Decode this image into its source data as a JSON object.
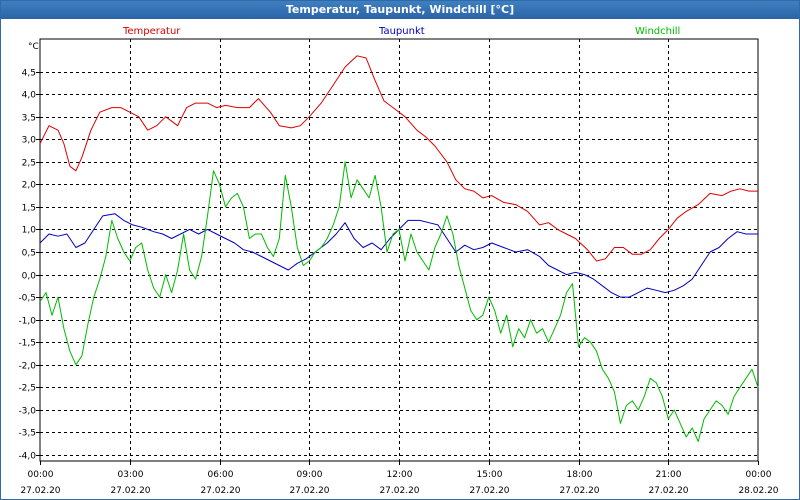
{
  "window": {
    "title": "Temperatur, Taupunkt, Windchill [°C]"
  },
  "chart_data": {
    "type": "line",
    "title": "Temperatur, Taupunkt, Windchill [°C]",
    "ylabel": "°C",
    "xlabel": "",
    "ylim": [
      -4.0,
      5.0
    ],
    "xlim": [
      0,
      24
    ],
    "grid": true,
    "legend": "top",
    "y_ticks": [
      -4.0,
      -3.5,
      -3.0,
      -2.5,
      -2.0,
      -1.5,
      -1.0,
      -0.5,
      0.0,
      0.5,
      1.0,
      1.5,
      2.0,
      2.5,
      3.0,
      3.5,
      4.0,
      4.5
    ],
    "y_tick_labels": [
      "-4,0",
      "-3,5",
      "-3,0",
      "-2,5",
      "-2,0",
      "-1,5",
      "-1,0",
      "-0,5",
      "0,0",
      "0,5",
      "1,0",
      "1,5",
      "2,0",
      "2,5",
      "3,0",
      "3,5",
      "4,0",
      "4,5"
    ],
    "x_ticks": [
      {
        "time": "00:00",
        "date": "27.02.20"
      },
      {
        "time": "03:00",
        "date": "27.02.20"
      },
      {
        "time": "06:00",
        "date": "27.02.20"
      },
      {
        "time": "09:00",
        "date": "27.02.20"
      },
      {
        "time": "12:00",
        "date": "27.02.20"
      },
      {
        "time": "15:00",
        "date": "27.02.20"
      },
      {
        "time": "18:00",
        "date": "27.02.20"
      },
      {
        "time": "21:00",
        "date": "27.02.20"
      },
      {
        "time": "00:00",
        "date": "28.02.20"
      }
    ],
    "series": [
      {
        "name": "Temperatur",
        "color": "#dd0000",
        "x": [
          0,
          0.3,
          0.6,
          0.8,
          1.0,
          1.2,
          1.4,
          1.7,
          2.0,
          2.4,
          2.7,
          3.0,
          3.3,
          3.6,
          3.9,
          4.2,
          4.6,
          4.9,
          5.2,
          5.6,
          5.9,
          6.2,
          6.6,
          7.0,
          7.3,
          7.7,
          8.0,
          8.4,
          8.7,
          9.0,
          9.4,
          9.8,
          10.2,
          10.6,
          10.9,
          11.2,
          11.5,
          11.8,
          12.2,
          12.6,
          12.9,
          13.2,
          13.6,
          13.9,
          14.2,
          14.5,
          14.8,
          15.1,
          15.5,
          15.9,
          16.3,
          16.7,
          17.0,
          17.3,
          17.6,
          17.9,
          18.3,
          18.6,
          18.9,
          19.2,
          19.5,
          19.8,
          20.1,
          20.4,
          20.7,
          21.0,
          21.3,
          21.6,
          22.0,
          22.4,
          22.8,
          23.1,
          23.4,
          23.7,
          24.0
        ],
        "values": [
          2.9,
          3.3,
          3.2,
          2.9,
          2.4,
          2.3,
          2.6,
          3.2,
          3.6,
          3.7,
          3.7,
          3.6,
          3.5,
          3.2,
          3.3,
          3.5,
          3.3,
          3.7,
          3.8,
          3.8,
          3.7,
          3.75,
          3.7,
          3.7,
          3.9,
          3.6,
          3.3,
          3.25,
          3.3,
          3.5,
          3.8,
          4.2,
          4.6,
          4.85,
          4.8,
          4.3,
          3.85,
          3.7,
          3.5,
          3.2,
          3.05,
          2.85,
          2.5,
          2.1,
          1.9,
          1.85,
          1.7,
          1.75,
          1.6,
          1.55,
          1.4,
          1.1,
          1.15,
          1.0,
          0.9,
          0.8,
          0.55,
          0.3,
          0.35,
          0.6,
          0.6,
          0.45,
          0.45,
          0.55,
          0.8,
          1.0,
          1.25,
          1.4,
          1.55,
          1.8,
          1.75,
          1.85,
          1.9,
          1.85,
          1.85
        ]
      },
      {
        "name": "Taupunkt",
        "color": "#0000bb",
        "x": [
          0,
          0.3,
          0.6,
          0.9,
          1.2,
          1.5,
          1.8,
          2.1,
          2.5,
          2.8,
          3.1,
          3.4,
          3.8,
          4.1,
          4.4,
          4.7,
          5.0,
          5.3,
          5.6,
          5.9,
          6.2,
          6.5,
          6.8,
          7.1,
          7.4,
          7.7,
          8.0,
          8.3,
          8.6,
          8.9,
          9.2,
          9.6,
          9.9,
          10.2,
          10.5,
          10.8,
          11.1,
          11.4,
          11.7,
          12.0,
          12.3,
          12.7,
          13.0,
          13.3,
          13.6,
          13.9,
          14.2,
          14.5,
          14.8,
          15.1,
          15.5,
          15.9,
          16.3,
          16.7,
          17.0,
          17.3,
          17.6,
          17.9,
          18.2,
          18.5,
          18.8,
          19.1,
          19.4,
          19.7,
          20.0,
          20.3,
          20.6,
          20.9,
          21.2,
          21.5,
          21.8,
          22.1,
          22.4,
          22.7,
          23.0,
          23.3,
          23.6,
          24.0
        ],
        "values": [
          0.7,
          0.9,
          0.85,
          0.9,
          0.6,
          0.7,
          1.0,
          1.3,
          1.35,
          1.2,
          1.1,
          1.05,
          0.95,
          0.9,
          0.8,
          0.9,
          1.0,
          0.9,
          1.0,
          0.9,
          0.8,
          0.7,
          0.55,
          0.5,
          0.4,
          0.3,
          0.2,
          0.1,
          0.25,
          0.35,
          0.5,
          0.7,
          0.9,
          1.15,
          0.8,
          0.6,
          0.7,
          0.55,
          0.8,
          1.0,
          1.2,
          1.2,
          1.15,
          1.1,
          0.8,
          0.5,
          0.65,
          0.55,
          0.6,
          0.7,
          0.6,
          0.5,
          0.55,
          0.4,
          0.2,
          0.1,
          0.0,
          0.05,
          0.0,
          -0.1,
          -0.25,
          -0.4,
          -0.5,
          -0.5,
          -0.4,
          -0.3,
          -0.35,
          -0.4,
          -0.35,
          -0.25,
          -0.1,
          0.2,
          0.5,
          0.6,
          0.8,
          0.95,
          0.9,
          0.9
        ]
      },
      {
        "name": "Windchill",
        "color": "#00bb00",
        "x": [
          0,
          0.2,
          0.4,
          0.6,
          0.8,
          1.0,
          1.2,
          1.4,
          1.6,
          1.8,
          2.0,
          2.2,
          2.4,
          2.6,
          2.8,
          3.0,
          3.2,
          3.4,
          3.6,
          3.8,
          4.0,
          4.2,
          4.4,
          4.6,
          4.8,
          5.0,
          5.2,
          5.4,
          5.6,
          5.8,
          6.0,
          6.2,
          6.4,
          6.6,
          6.8,
          7.0,
          7.2,
          7.4,
          7.6,
          7.8,
          8.0,
          8.2,
          8.4,
          8.6,
          8.8,
          9.0,
          9.2,
          9.4,
          9.6,
          9.8,
          10.0,
          10.2,
          10.4,
          10.6,
          10.8,
          11.0,
          11.2,
          11.4,
          11.6,
          11.8,
          12.0,
          12.2,
          12.4,
          12.6,
          12.8,
          13.0,
          13.2,
          13.4,
          13.6,
          13.8,
          14.0,
          14.2,
          14.4,
          14.6,
          14.8,
          15.0,
          15.2,
          15.4,
          15.6,
          15.8,
          16.0,
          16.2,
          16.4,
          16.6,
          16.8,
          17.0,
          17.2,
          17.4,
          17.6,
          17.8,
          18.0,
          18.2,
          18.4,
          18.6,
          18.8,
          19.0,
          19.2,
          19.4,
          19.6,
          19.8,
          20.0,
          20.2,
          20.4,
          20.6,
          20.8,
          21.0,
          21.2,
          21.4,
          21.6,
          21.8,
          22.0,
          22.2,
          22.4,
          22.6,
          22.8,
          23.0,
          23.2,
          23.4,
          23.6,
          23.8,
          24.0
        ],
        "values": [
          -0.6,
          -0.4,
          -0.9,
          -0.5,
          -1.2,
          -1.7,
          -2.0,
          -1.8,
          -1.1,
          -0.5,
          -0.1,
          0.4,
          1.2,
          0.8,
          0.5,
          0.3,
          0.6,
          0.7,
          0.1,
          -0.3,
          -0.5,
          0.0,
          -0.4,
          0.1,
          0.9,
          0.1,
          -0.1,
          0.4,
          1.3,
          2.3,
          2.0,
          1.5,
          1.7,
          1.8,
          1.5,
          0.8,
          0.9,
          0.9,
          0.6,
          0.4,
          0.8,
          2.2,
          1.5,
          0.6,
          0.2,
          0.3,
          0.5,
          0.6,
          0.8,
          1.1,
          1.5,
          2.5,
          1.7,
          2.1,
          1.9,
          1.7,
          2.2,
          1.5,
          0.5,
          0.9,
          1.0,
          0.3,
          0.9,
          0.5,
          0.3,
          0.1,
          0.6,
          0.9,
          1.3,
          0.9,
          0.2,
          -0.3,
          -0.8,
          -1.0,
          -0.9,
          -0.5,
          -0.8,
          -1.3,
          -0.9,
          -1.6,
          -1.2,
          -1.4,
          -1.0,
          -1.3,
          -1.2,
          -1.5,
          -1.2,
          -0.9,
          -0.4,
          -0.2,
          -1.6,
          -1.4,
          -1.5,
          -1.7,
          -2.1,
          -2.3,
          -2.6,
          -3.3,
          -2.9,
          -2.8,
          -3.0,
          -2.7,
          -2.3,
          -2.4,
          -2.7,
          -3.2,
          -3.0,
          -3.3,
          -3.6,
          -3.4,
          -3.7,
          -3.2,
          -3.0,
          -2.8,
          -2.9,
          -3.1,
          -2.7,
          -2.5,
          -2.3,
          -2.1,
          -2.5
        ]
      }
    ]
  }
}
